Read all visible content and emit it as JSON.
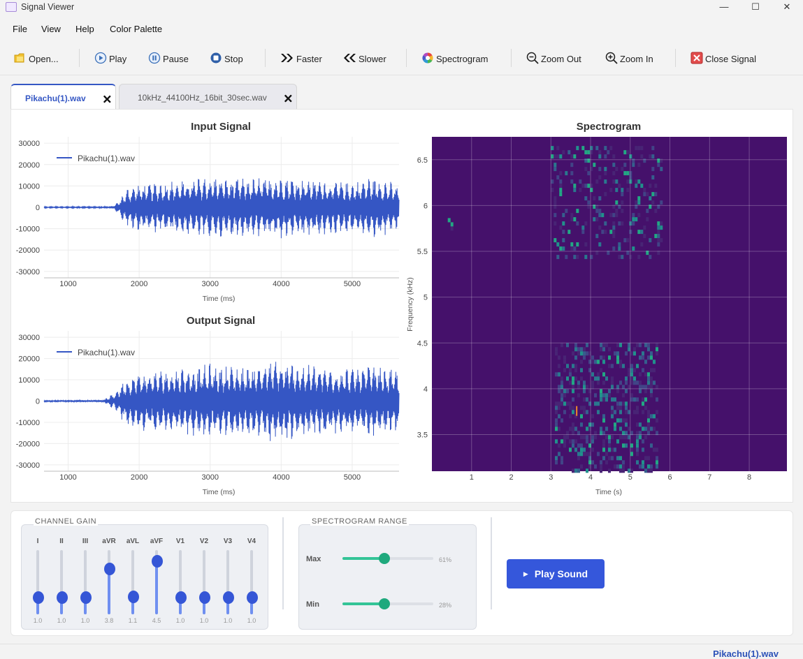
{
  "window": {
    "title": "Signal Viewer",
    "controls": [
      "—",
      "☐",
      "✕"
    ]
  },
  "menu": [
    "File",
    "View",
    "Help",
    "Color Palette"
  ],
  "toolbar": {
    "open": "Open...",
    "play": "Play",
    "pause": "Pause",
    "stop": "Stop",
    "faster": "Faster",
    "slower": "Slower",
    "spectrogram": "Spectrogram",
    "zoom_out": "Zoom Out",
    "zoom_in": "Zoom In",
    "close_signal": "Close Signal"
  },
  "tabs": [
    {
      "label": "Pikachu(1).wav",
      "active": true
    },
    {
      "label": "10kHz_44100Hz_16bit_30sec.wav",
      "active": false
    }
  ],
  "close_glyph": "🗙",
  "chart_data": [
    {
      "type": "line",
      "title": "Input Signal",
      "xlabel": "Time (ms)",
      "ylabel": "",
      "xlim": [
        660,
        5660
      ],
      "ylim": [
        -33000,
        33000
      ],
      "xticks": [
        1000,
        2000,
        3000,
        4000,
        5000
      ],
      "yticks": [
        30000,
        20000,
        10000,
        0,
        -10000,
        -20000,
        -30000
      ],
      "legend": "top-left",
      "series": [
        {
          "name": "Pikachu(1).wav",
          "color": "#3556c4",
          "description": "near-silent until about 1650 ms, then dense oscillation with envelope",
          "envelope": [
            [
              660,
              300
            ],
            [
              1600,
              400
            ],
            [
              1700,
              2500
            ],
            [
              1800,
              8000
            ],
            [
              1900,
              11000
            ],
            [
              2500,
              13000
            ],
            [
              3000,
              15000
            ],
            [
              3500,
              14000
            ],
            [
              4000,
              15000
            ],
            [
              4500,
              14000
            ],
            [
              5000,
              12000
            ],
            [
              5300,
              15000
            ],
            [
              5650,
              11000
            ]
          ]
        }
      ]
    },
    {
      "type": "line",
      "title": "Output Signal",
      "xlabel": "Time (ms)",
      "ylabel": "",
      "xlim": [
        660,
        5660
      ],
      "ylim": [
        -33000,
        33000
      ],
      "xticks": [
        1000,
        2000,
        3000,
        4000,
        5000
      ],
      "yticks": [
        30000,
        20000,
        10000,
        0,
        -10000,
        -20000,
        -30000
      ],
      "legend": "top-left",
      "series": [
        {
          "name": "Pikachu(1).wav",
          "color": "#3556c4",
          "description": "amplified version of the input signal",
          "envelope": [
            [
              660,
              400
            ],
            [
              1500,
              600
            ],
            [
              1650,
              4000
            ],
            [
              1800,
              11000
            ],
            [
              2000,
              14000
            ],
            [
              2500,
              16000
            ],
            [
              3000,
              18000
            ],
            [
              3500,
              17000
            ],
            [
              3900,
              20000
            ],
            [
              4500,
              17000
            ],
            [
              5000,
              16000
            ],
            [
              5300,
              18000
            ],
            [
              5650,
              15000
            ]
          ]
        }
      ]
    },
    {
      "type": "heatmap",
      "title": "Spectrogram",
      "xlabel": "Time (s)",
      "ylabel": "Frequency (kHz)",
      "xlim": [
        0.0,
        8.95
      ],
      "ylim": [
        3.1,
        6.75
      ],
      "xticks": [
        1,
        2,
        3,
        4,
        5,
        6,
        7,
        8
      ],
      "yticks": [
        3.5,
        4,
        4.5,
        5,
        5.5,
        6,
        6.5
      ],
      "colormap": "viridis",
      "background": "#45116b",
      "energy_regions": [
        {
          "t": [
            3.0,
            5.8
          ],
          "f": [
            5.45,
            6.65
          ],
          "intensity": 0.4
        },
        {
          "t": [
            3.1,
            5.7
          ],
          "f": [
            3.1,
            4.5
          ],
          "intensity": 0.6
        },
        {
          "t": [
            0.4,
            0.5
          ],
          "f": [
            5.7,
            6.0
          ],
          "intensity": 0.3
        }
      ],
      "peak": {
        "t": 3.65,
        "f": 3.75,
        "color": "#f08a2a"
      }
    }
  ],
  "channel_gain": {
    "title": "CHANNEL GAIN",
    "channels": [
      {
        "name": "I",
        "value": "1.0",
        "level": 0.2
      },
      {
        "name": "II",
        "value": "1.0",
        "level": 0.2
      },
      {
        "name": "III",
        "value": "1.0",
        "level": 0.2
      },
      {
        "name": "aVR",
        "value": "3.8",
        "level": 0.76
      },
      {
        "name": "aVL",
        "value": "1.1",
        "level": 0.22
      },
      {
        "name": "aVF",
        "value": "4.5",
        "level": 0.9
      },
      {
        "name": "V1",
        "value": "1.0",
        "level": 0.2
      },
      {
        "name": "V2",
        "value": "1.0",
        "level": 0.2
      },
      {
        "name": "V3",
        "value": "1.0",
        "level": 0.2
      },
      {
        "name": "V4",
        "value": "1.0",
        "level": 0.2
      }
    ]
  },
  "spectrogram_range": {
    "title": "SPECTROGRAM RANGE",
    "max": {
      "label": "Max",
      "value": "61%",
      "fraction": 0.46
    },
    "min": {
      "label": "Min",
      "value": "28%",
      "fraction": 0.46
    }
  },
  "play_sound": {
    "label": "Play Sound",
    "icon": "▶"
  },
  "status": {
    "file": "Pikachu(1).wav"
  }
}
